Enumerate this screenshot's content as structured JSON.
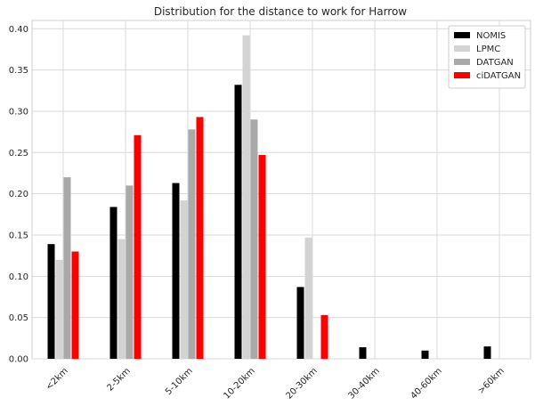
{
  "chart_data": {
    "type": "bar",
    "title": "Distribution for the distance to work for Harrow",
    "xlabel": "",
    "ylabel": "",
    "categories": [
      "<2km",
      "2-5km",
      "5-10km",
      "10-20km",
      "20-30km",
      "30-40km",
      "40-60km",
      ">60km"
    ],
    "series": [
      {
        "name": "NOMIS",
        "color": "#000000",
        "values": [
          0.139,
          0.184,
          0.213,
          0.332,
          0.087,
          0.014,
          0.01,
          0.015
        ]
      },
      {
        "name": "LPMC",
        "color": "#d3d3d3",
        "values": [
          0.12,
          0.145,
          0.192,
          0.392,
          0.147,
          0.0,
          0.0,
          0.0
        ]
      },
      {
        "name": "DATGAN",
        "color": "#a9a9a9",
        "values": [
          0.22,
          0.21,
          0.278,
          0.29,
          0.0,
          0.0,
          0.0,
          0.0
        ]
      },
      {
        "name": "ciDATGAN",
        "color": "#ff0000",
        "values": [
          0.13,
          0.271,
          0.293,
          0.247,
          0.053,
          0.0,
          0.0,
          0.0
        ]
      }
    ],
    "yticks": [
      "0.00",
      "0.05",
      "0.10",
      "0.15",
      "0.20",
      "0.25",
      "0.30",
      "0.35",
      "0.40"
    ],
    "ylim": [
      0,
      0.41
    ],
    "grid": true,
    "legend_position": "top-right"
  }
}
